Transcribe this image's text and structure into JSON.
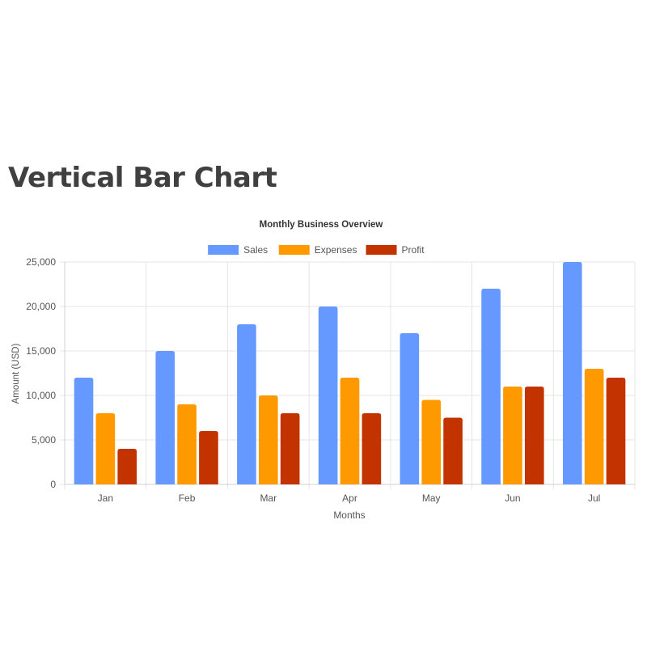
{
  "page": {
    "heading": "Vertical Bar Chart"
  },
  "chart_data": {
    "type": "bar",
    "title": "Monthly Business Overview",
    "xlabel": "Months",
    "ylabel": "Amount (USD)",
    "ylim": [
      0,
      25000
    ],
    "yticks": [
      0,
      5000,
      10000,
      15000,
      20000,
      25000
    ],
    "ytick_labels": [
      "0",
      "5,000",
      "10,000",
      "15,000",
      "20,000",
      "25,000"
    ],
    "grid": true,
    "legend_position": "top",
    "categories": [
      "Jan",
      "Feb",
      "Mar",
      "Apr",
      "May",
      "Jun",
      "Jul"
    ],
    "series": [
      {
        "name": "Sales",
        "color": "#6699ff",
        "values": [
          12000,
          15000,
          18000,
          20000,
          17000,
          22000,
          25000
        ]
      },
      {
        "name": "Expenses",
        "color": "#ff9900",
        "values": [
          8000,
          9000,
          10000,
          12000,
          9500,
          11000,
          13000
        ]
      },
      {
        "name": "Profit",
        "color": "#c23300",
        "values": [
          4000,
          6000,
          8000,
          8000,
          7500,
          11000,
          12000
        ]
      }
    ]
  }
}
